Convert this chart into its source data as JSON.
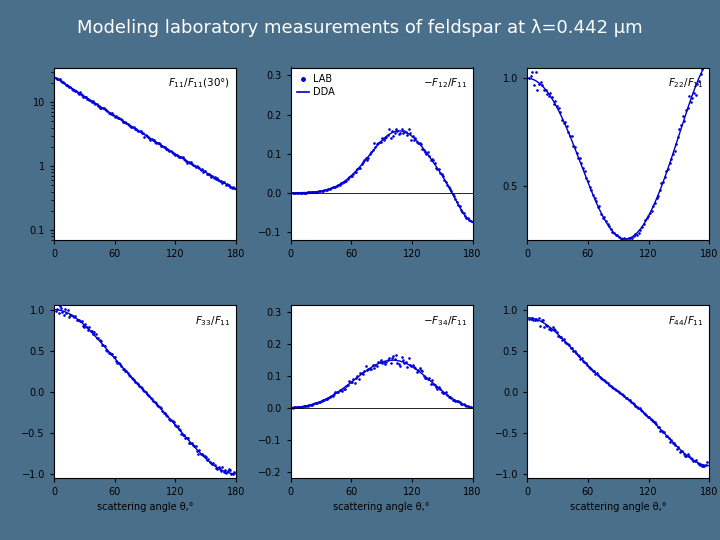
{
  "title": "Modeling laboratory measurements of feldspar at λ=0.442 μm",
  "title_bg": "#4a6f8a",
  "title_color": "white",
  "title_fontsize": 13,
  "line_color": "#0000bb",
  "dot_color": "#0000dd",
  "xlabel": "scattering angle θ,°",
  "x_ticks": [
    0,
    60,
    120,
    180
  ],
  "legend_lab": [
    "LAB",
    "DDA"
  ]
}
